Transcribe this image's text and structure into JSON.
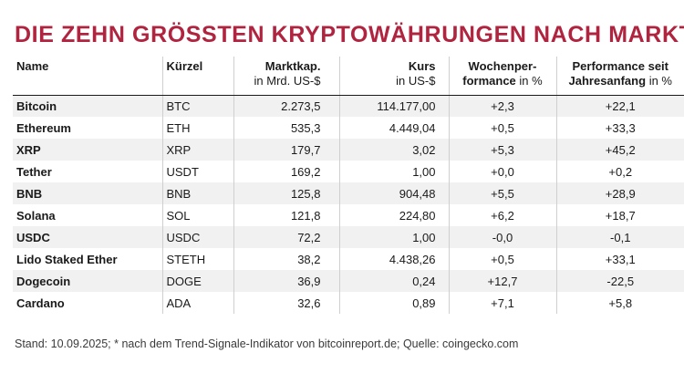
{
  "title": "DIE ZEHN GRÖSSTEN KRYPTOWÄHRUNGEN NACH MARKTKAPITAL",
  "chart_data": {
    "type": "table",
    "columns": [
      {
        "key": "name",
        "label": "Name",
        "sub": ""
      },
      {
        "key": "symbol",
        "label": "Kürzel",
        "sub": ""
      },
      {
        "key": "marketcap",
        "label": "Marktkap.",
        "sub": "in Mrd. US-$"
      },
      {
        "key": "price",
        "label": "Kurs",
        "sub": "in US-$"
      },
      {
        "key": "week",
        "label": "Wochenper-",
        "label2": "formance",
        "sub": "in %"
      },
      {
        "key": "ytd",
        "label": "Performance seit",
        "label2": "Jahresanfang",
        "sub": "in %"
      }
    ],
    "rows": [
      {
        "name": "Bitcoin",
        "symbol": "BTC",
        "marketcap": "2.273,5",
        "price": "114.177,00",
        "week": "+2,3",
        "ytd": "+22,1"
      },
      {
        "name": "Ethereum",
        "symbol": "ETH",
        "marketcap": "535,3",
        "price": "4.449,04",
        "week": "+0,5",
        "ytd": "+33,3"
      },
      {
        "name": "XRP",
        "symbol": "XRP",
        "marketcap": "179,7",
        "price": "3,02",
        "week": "+5,3",
        "ytd": "+45,2"
      },
      {
        "name": "Tether",
        "symbol": "USDT",
        "marketcap": "169,2",
        "price": "1,00",
        "week": "+0,0",
        "ytd": "+0,2"
      },
      {
        "name": "BNB",
        "symbol": "BNB",
        "marketcap": "125,8",
        "price": "904,48",
        "week": "+5,5",
        "ytd": "+28,9"
      },
      {
        "name": "Solana",
        "symbol": "SOL",
        "marketcap": "121,8",
        "price": "224,80",
        "week": "+6,2",
        "ytd": "+18,7"
      },
      {
        "name": "USDC",
        "symbol": "USDC",
        "marketcap": "72,2",
        "price": "1,00",
        "week": "-0,0",
        "ytd": "-0,1"
      },
      {
        "name": "Lido Staked Ether",
        "symbol": "STETH",
        "marketcap": "38,2",
        "price": "4.438,26",
        "week": "+0,5",
        "ytd": "+33,1"
      },
      {
        "name": "Dogecoin",
        "symbol": "DOGE",
        "marketcap": "36,9",
        "price": "0,24",
        "week": "+12,7",
        "ytd": "-22,5"
      },
      {
        "name": "Cardano",
        "symbol": "ADA",
        "marketcap": "32,6",
        "price": "0,89",
        "week": "+7,1",
        "ytd": "+5,8"
      }
    ]
  },
  "footnote": "Stand: 10.09.2025; * nach dem Trend-Signale-Indikator von bitcoinreport.de; Quelle: coingecko.com",
  "colors": {
    "title": "#b0243f",
    "row_shade": "#f1f1f1",
    "divider": "#cfcfcf"
  }
}
